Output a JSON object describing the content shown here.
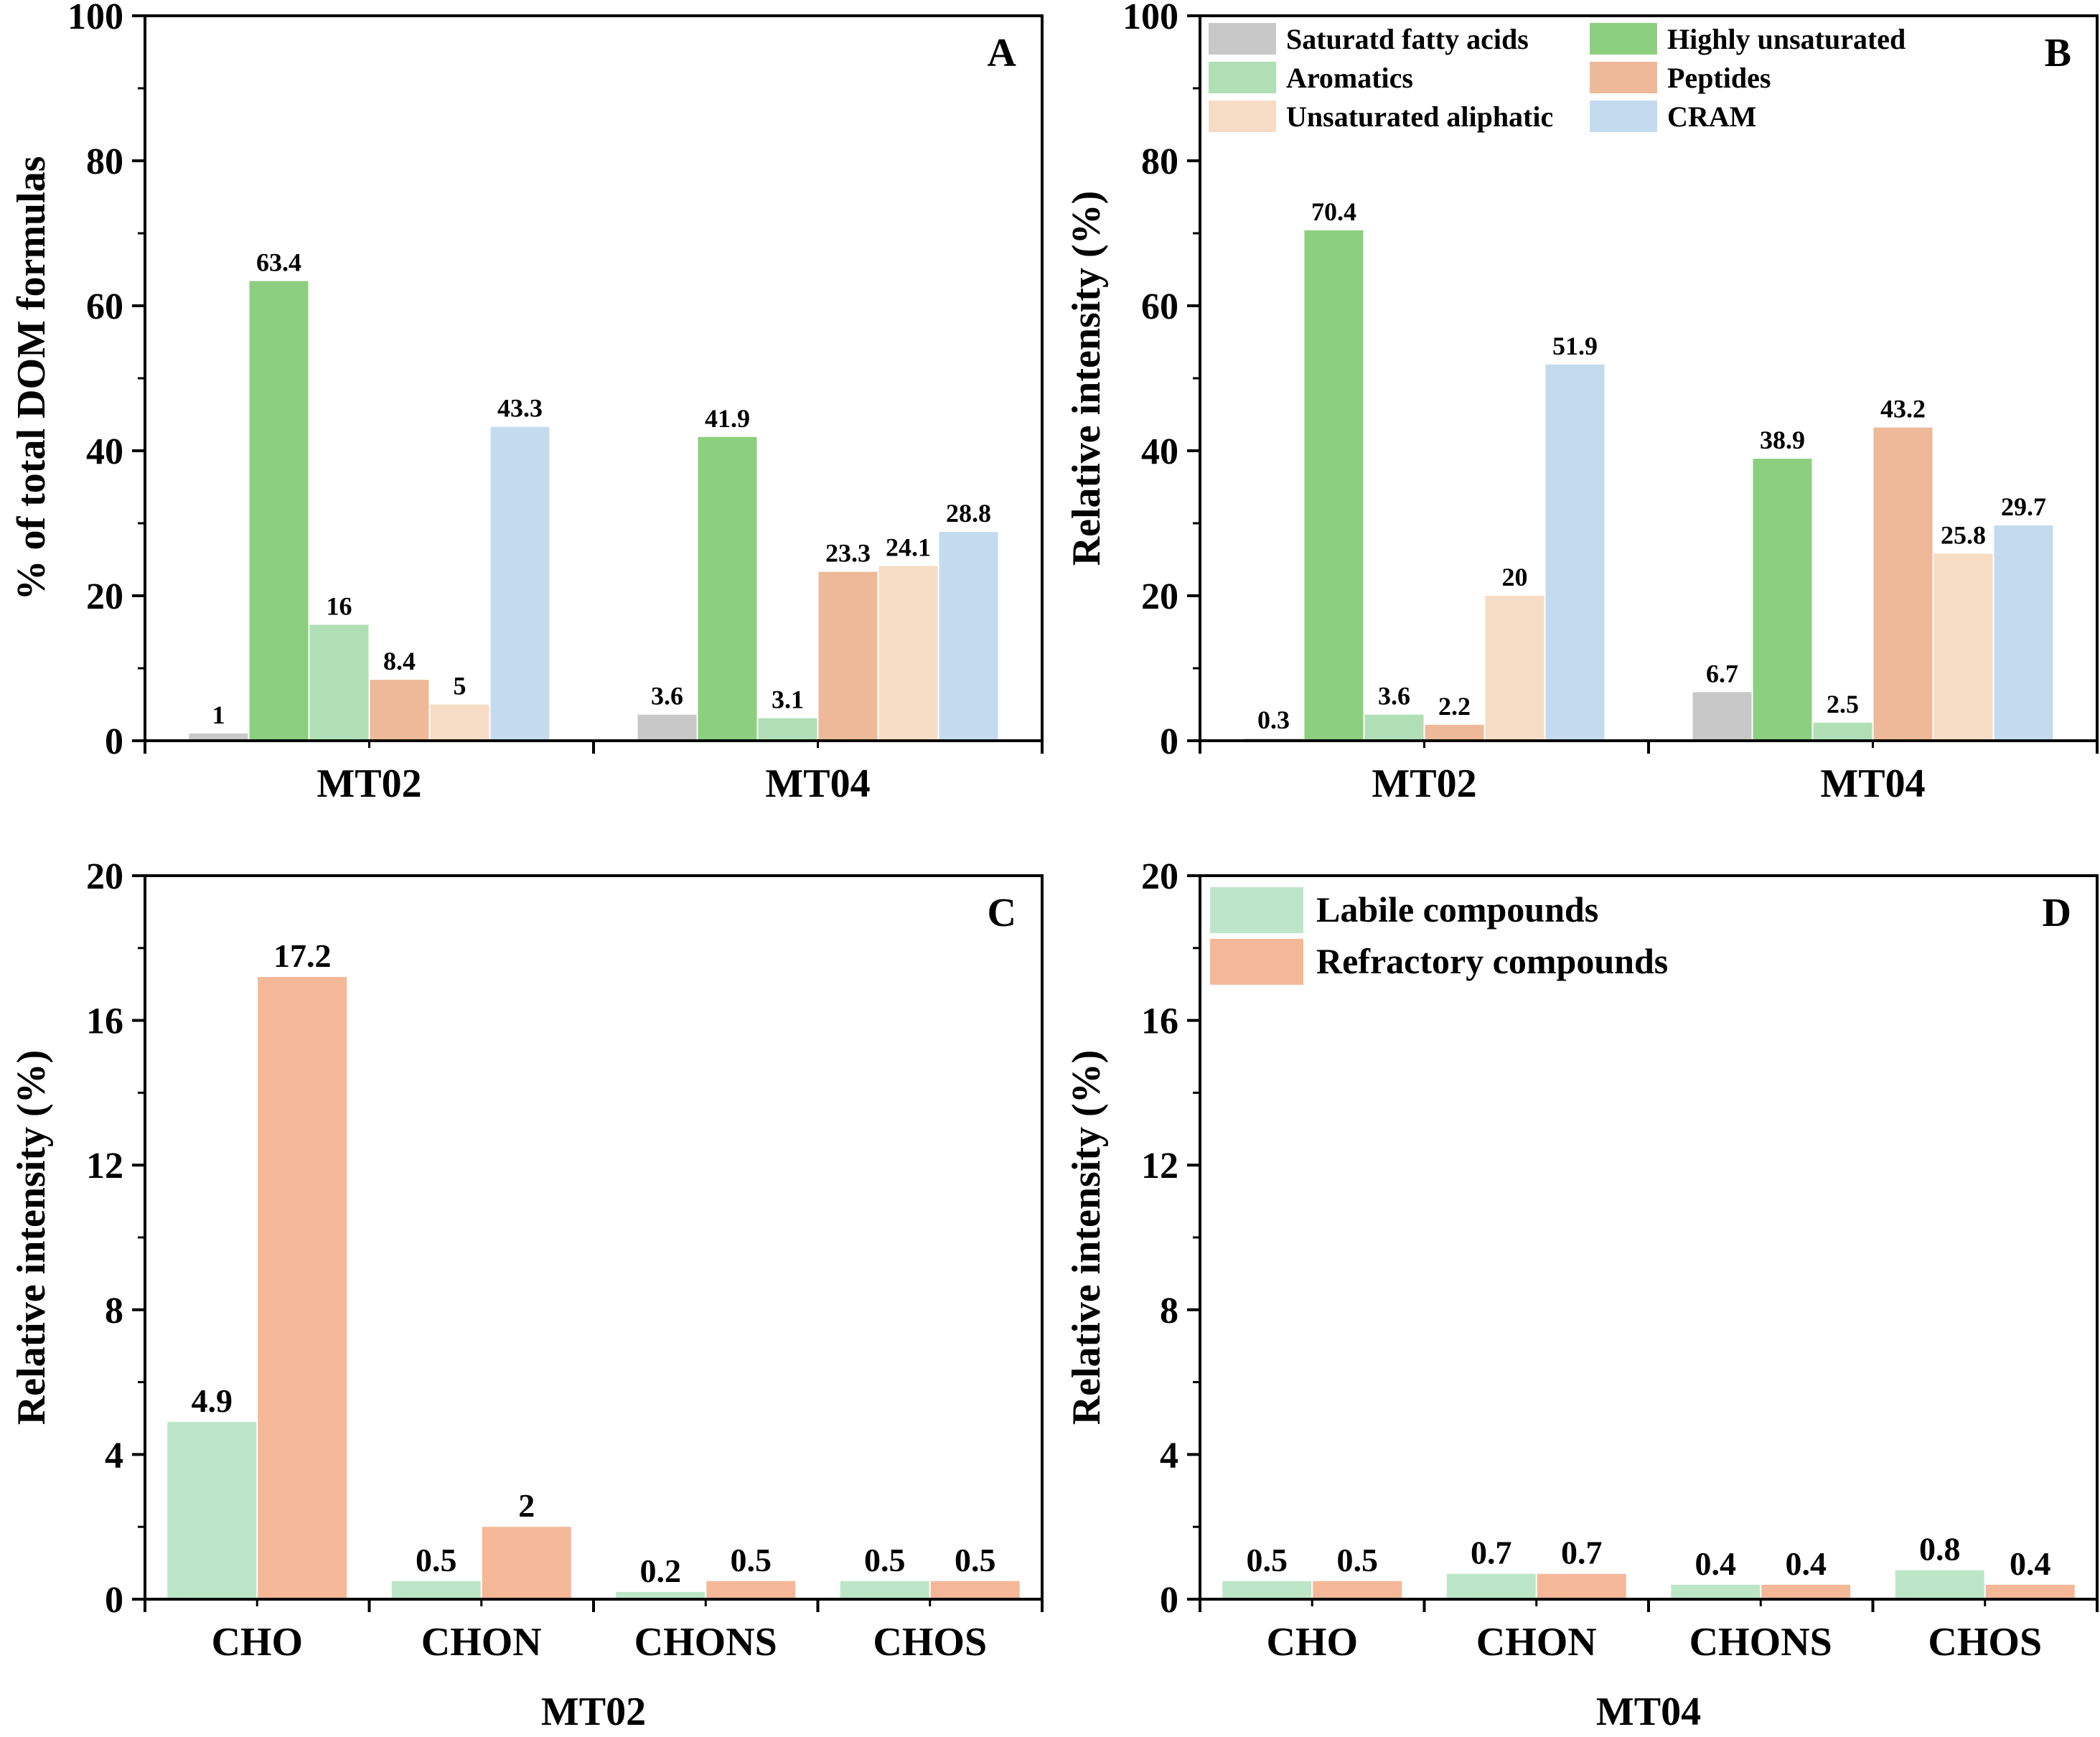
{
  "colors": {
    "saturated": "#c8c8c8",
    "highly_unsaturated": "#8ccf7e",
    "aromatics": "#b0dfb6",
    "peptides": "#edb998",
    "unsaturated_aliphatic": "#f6dcc4",
    "cram": "#c4dbef",
    "labile": "#bde6c8",
    "refractory": "#f4b898",
    "axis": "#000000"
  },
  "chart_data": [
    {
      "id": "A",
      "type": "bar",
      "panel_letter": "A",
      "ylabel": "% of total DOM formulas",
      "xlabel": "",
      "ylim": [
        0,
        100
      ],
      "yticks": [
        0,
        20,
        40,
        60,
        80,
        100
      ],
      "categories": [
        "MT02",
        "MT04"
      ],
      "series": [
        {
          "key": "saturated",
          "name": "Saturatd fatty acids",
          "values": [
            1,
            3.6
          ],
          "labels": [
            "1",
            "3.6"
          ]
        },
        {
          "key": "highly_unsaturated",
          "name": "Highly unsaturated",
          "values": [
            63.4,
            41.9
          ],
          "labels": [
            "63.4",
            "41.9"
          ]
        },
        {
          "key": "aromatics",
          "name": "Aromatics",
          "values": [
            16,
            3.1
          ],
          "labels": [
            "16",
            "3.1"
          ]
        },
        {
          "key": "peptides",
          "name": "Peptides",
          "values": [
            8.4,
            23.3
          ],
          "labels": [
            "8.4",
            "23.3"
          ]
        },
        {
          "key": "unsaturated_aliphatic",
          "name": "Unsaturated aliphatic",
          "values": [
            5,
            24.1
          ],
          "labels": [
            "5",
            "24.1"
          ]
        },
        {
          "key": "cram",
          "name": "CRAM",
          "values": [
            43.3,
            28.8
          ],
          "labels": [
            "43.3",
            "28.8"
          ]
        }
      ],
      "legend": false
    },
    {
      "id": "B",
      "type": "bar",
      "panel_letter": "B",
      "ylabel": "Relative intensity (%)",
      "xlabel": "",
      "ylim": [
        0,
        100
      ],
      "yticks": [
        0,
        20,
        40,
        60,
        80,
        100
      ],
      "categories": [
        "MT02",
        "MT04"
      ],
      "series": [
        {
          "key": "saturated",
          "name": "Saturatd fatty acids",
          "values": [
            0.3,
            6.7
          ],
          "labels": [
            "0.3",
            "6.7"
          ]
        },
        {
          "key": "highly_unsaturated",
          "name": "Highly unsaturated",
          "values": [
            70.4,
            38.9
          ],
          "labels": [
            "70.4",
            "38.9"
          ]
        },
        {
          "key": "aromatics",
          "name": "Aromatics",
          "values": [
            3.6,
            2.5
          ],
          "labels": [
            "3.6",
            "2.5"
          ]
        },
        {
          "key": "peptides",
          "name": "Peptides",
          "values": [
            2.2,
            43.2
          ],
          "labels": [
            "2.2",
            "43.2"
          ]
        },
        {
          "key": "unsaturated_aliphatic",
          "name": "Unsaturated aliphatic",
          "values": [
            20,
            25.8
          ],
          "labels": [
            "20",
            "25.8"
          ]
        },
        {
          "key": "cram",
          "name": "CRAM",
          "values": [
            51.9,
            29.7
          ],
          "labels": [
            "51.9",
            "29.7"
          ]
        }
      ],
      "legend": true,
      "legend_position": "top-left",
      "legend_columns": [
        [
          "saturated",
          "aromatics",
          "unsaturated_aliphatic"
        ],
        [
          "highly_unsaturated",
          "peptides",
          "cram"
        ]
      ]
    },
    {
      "id": "C",
      "type": "bar",
      "panel_letter": "C",
      "ylabel": "Relative intensity (%)",
      "xlabel": "MT02",
      "ylim": [
        0,
        20
      ],
      "yticks": [
        0,
        4,
        8,
        12,
        16,
        20
      ],
      "categories": [
        "CHO",
        "CHON",
        "CHONS",
        "CHOS"
      ],
      "series": [
        {
          "key": "labile",
          "name": "Labile compounds",
          "values": [
            4.9,
            0.5,
            0.2,
            0.5
          ],
          "labels": [
            "4.9",
            "0.5",
            "0.2",
            "0.5"
          ]
        },
        {
          "key": "refractory",
          "name": "Refractory compounds",
          "values": [
            17.2,
            2,
            0.5,
            0.5
          ],
          "labels": [
            "17.2",
            "2",
            "0.5",
            "0.5"
          ]
        }
      ],
      "legend": false
    },
    {
      "id": "D",
      "type": "bar",
      "panel_letter": "D",
      "ylabel": "Relative intensity (%)",
      "xlabel": "MT04",
      "ylim": [
        0,
        20
      ],
      "yticks": [
        0,
        4,
        8,
        12,
        16,
        20
      ],
      "categories": [
        "CHO",
        "CHON",
        "CHONS",
        "CHOS"
      ],
      "series": [
        {
          "key": "labile",
          "name": "Labile compounds",
          "values": [
            0.5,
            0.7,
            0.4,
            0.8
          ],
          "labels": [
            "0.5",
            "0.7",
            "0.4",
            "0.8"
          ]
        },
        {
          "key": "refractory",
          "name": "Refractory compounds",
          "values": [
            0.5,
            0.7,
            0.4,
            0.4
          ],
          "labels": [
            "0.5",
            "0.7",
            "0.4",
            "0.4"
          ]
        }
      ],
      "legend": true,
      "legend_position": "top-left",
      "legend_columns": [
        [
          "labile",
          "refractory"
        ]
      ]
    }
  ]
}
